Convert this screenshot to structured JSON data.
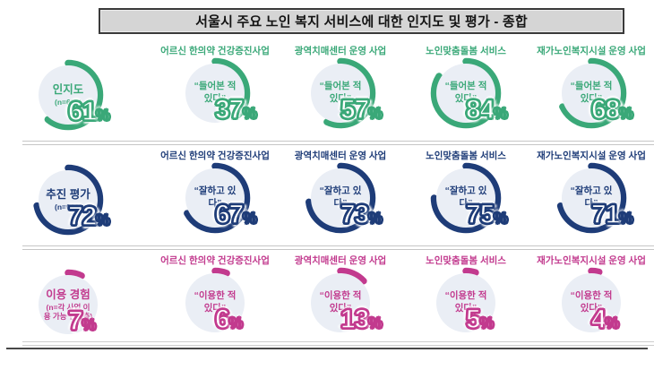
{
  "title": "서울시 주요 노인 복지 서비스에 대한 인지도 및 평가 - 종합",
  "colors": {
    "awareness_green": "#3aa878",
    "evaluation_navy": "#1e3c78",
    "usage_pink": "#c23a8e",
    "circle_fill": "#eaeef5",
    "title_bg": "#d5d5d5"
  },
  "chart_data": {
    "type": "donut-grid",
    "unit": "%",
    "categories": [
      "어르신 한의약 건강증진사업",
      "광역치매센터 운영 사업",
      "노인맞춤돌봄 서비스",
      "재가노인복지시설 운영 사업"
    ],
    "rows": [
      {
        "metric": "인지도",
        "sample": "(n=600)",
        "quote": "“들어본 적 있다”",
        "overall": 61,
        "values": [
          37,
          57,
          84,
          68
        ],
        "color": "#3aa878"
      },
      {
        "metric": "추진 평가",
        "sample": "(n=600)",
        "quote": "“잘하고 있다”",
        "overall": 72,
        "values": [
          67,
          73,
          75,
          71
        ],
        "color": "#1e3c78"
      },
      {
        "metric": "이용 경험",
        "sample": "(n=각 사업 이용 가능 연령층)",
        "quote": "“이용한 적 있다”",
        "overall": 7,
        "values": [
          6,
          13,
          5,
          4
        ],
        "color": "#c23a8e"
      }
    ]
  }
}
